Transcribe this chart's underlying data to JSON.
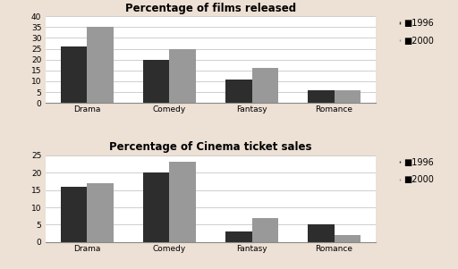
{
  "chart1": {
    "title": "Percentage of films released",
    "categories": [
      "Drama",
      "Comedy",
      "Fantasy",
      "Romance"
    ],
    "values_1996": [
      26,
      20,
      11,
      6
    ],
    "values_2000": [
      35,
      25,
      16,
      6
    ],
    "ylim": [
      0,
      40
    ],
    "yticks": [
      0,
      5,
      10,
      15,
      20,
      25,
      30,
      35,
      40
    ]
  },
  "chart2": {
    "title": "Percentage of Cinema ticket sales",
    "categories": [
      "Drama",
      "Comedy",
      "Fantasy",
      "Romance"
    ],
    "values_1996": [
      16,
      20,
      3,
      5
    ],
    "values_2000": [
      17,
      23,
      7,
      2
    ],
    "ylim": [
      0,
      25
    ],
    "yticks": [
      0,
      5,
      10,
      15,
      20,
      25
    ]
  },
  "color_1996": "#2d2d2d",
  "color_2000": "#999999",
  "legend_labels": [
    "1996",
    "2000"
  ],
  "bar_width": 0.32,
  "background_color": "#ede0d4",
  "axes_bg": "#ffffff",
  "title_fontsize": 8.5,
  "tick_fontsize": 6.5,
  "legend_fontsize": 7
}
